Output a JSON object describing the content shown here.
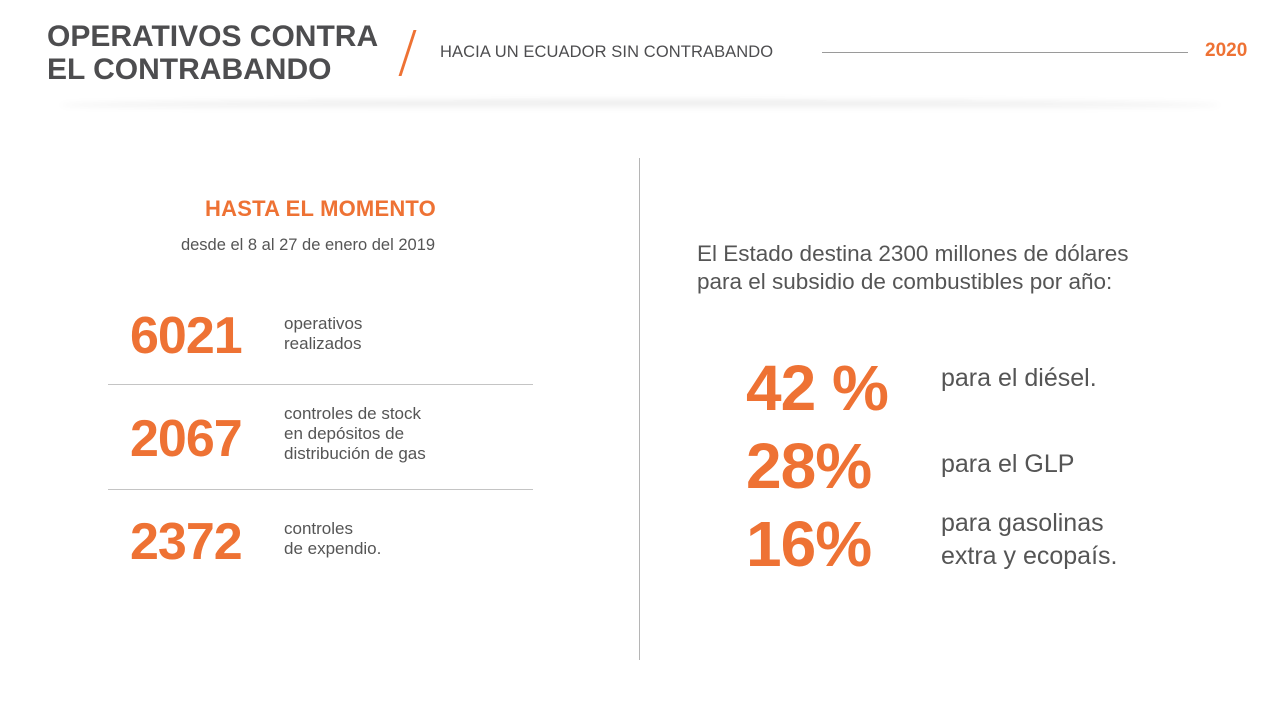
{
  "header": {
    "title_line1": "OPERATIVOS CONTRA",
    "title_line2": "EL CONTRABANDO",
    "subtitle": "HACIA UN ECUADOR SIN CONTRABANDO",
    "year": "2020"
  },
  "left": {
    "heading": "HASTA EL MOMENTO",
    "subheading": "desde el 8 al 27 de enero del 2019",
    "stats": [
      {
        "number": "6021",
        "label_line1": "operativos",
        "label_line2": "realizados",
        "label_line3": ""
      },
      {
        "number": "2067",
        "label_line1": "controles de stock",
        "label_line2": "en depósitos de",
        "label_line3": "distribución de gas"
      },
      {
        "number": "2372",
        "label_line1": "controles",
        "label_line2": "de expendio.",
        "label_line3": ""
      }
    ]
  },
  "right": {
    "intro_line1": "El Estado destina  2300 millones de dólares",
    "intro_line2": "para el subsidio de combustibles por año:",
    "items": [
      {
        "percent": "42 %",
        "label_line1": "para el diésel.",
        "label_line2": ""
      },
      {
        "percent": "28%",
        "label_line1": "para el GLP",
        "label_line2": ""
      },
      {
        "percent": "16%",
        "label_line1": "para gasolinas",
        "label_line2": "extra y ecopaís."
      }
    ]
  },
  "colors": {
    "accent": "#ee7234",
    "text": "#4d4d4f"
  }
}
